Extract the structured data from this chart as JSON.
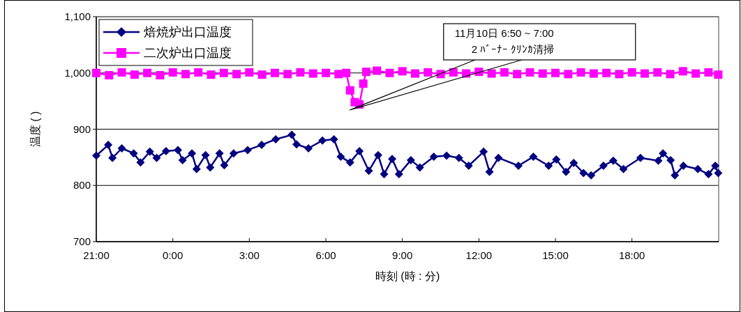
{
  "chart_data": {
    "type": "line",
    "xlabel": "時刻 (時 : 分)",
    "ylabel": "温度 (   )",
    "xlim": [
      "--11-09T21:00",
      "--11-10T21:24"
    ],
    "xticks": [
      {
        "value": "--11-09T21:00",
        "label": "21:00"
      },
      {
        "value": "--11-10T00:00",
        "label": "0:00"
      },
      {
        "value": "--11-10T03:00",
        "label": "3:00"
      },
      {
        "value": "--11-10T06:00",
        "label": "6:00"
      },
      {
        "value": "--11-10T09:00",
        "label": "9:00"
      },
      {
        "value": "--11-10T12:00",
        "label": "12:00"
      },
      {
        "value": "--11-10T15:00",
        "label": "15:00"
      },
      {
        "value": "--11-10T18:00",
        "label": "18:00"
      }
    ],
    "ylim": [
      700,
      1100
    ],
    "yticks": [
      700,
      800,
      900,
      {
        "value": 1000,
        "label": "1,000"
      },
      {
        "value": 1100,
        "label": "1,100"
      }
    ],
    "grid": "y",
    "legend": "top left",
    "series": [
      {
        "name": "焙焼炉出口温度",
        "color": "#000080",
        "marker": "diamond",
        "x": [
          "--11-09T21:00",
          "--11-09T21:28",
          "--11-09T21:38",
          "--11-09T22:00",
          "--11-09T22:28",
          "--11-09T22:44",
          "--11-09T23:06",
          "--11-09T23:22",
          "--11-09T23:44",
          "--11-10T00:12",
          "--11-10T00:23",
          "--11-10T00:45",
          "--11-10T00:56",
          "--11-10T01:17",
          "--11-10T01:28",
          "--11-10T01:50",
          "--11-10T02:01",
          "--11-10T02:23",
          "--11-10T02:56",
          "--11-10T03:29",
          "--11-10T04:02",
          "--11-10T04:40",
          "--11-10T04:51",
          "--11-10T05:19",
          "--11-10T05:52",
          "--11-10T06:19",
          "--11-10T06:35",
          "--11-10T06:57",
          "--11-10T07:19",
          "--11-10T07:41",
          "--11-10T08:03",
          "--11-10T08:17",
          "--11-10T08:36",
          "--11-10T08:52",
          "--11-10T09:20",
          "--11-10T09:41",
          "--11-10T10:14",
          "--11-10T10:44",
          "--11-10T11:13",
          "--11-10T11:36",
          "--11-10T12:11",
          "--11-10T12:25",
          "--11-10T12:46",
          "--11-10T13:33",
          "--11-10T14:08",
          "--11-10T14:44",
          "--11-10T15:02",
          "--11-10T15:25",
          "--11-10T15:43",
          "--11-10T16:06",
          "--11-10T16:24",
          "--11-10T16:53",
          "--11-10T17:16",
          "--11-10T17:40",
          "--11-10T18:20",
          "--11-10T19:02",
          "--11-10T19:13",
          "--11-10T19:31",
          "--11-10T19:41",
          "--11-10T20:01",
          "--11-10T20:35",
          "--11-10T21:00",
          "--11-10T21:16",
          "--11-10T21:23"
        ],
        "values": [
          853,
          872,
          849,
          866,
          857,
          841,
          860,
          849,
          861,
          863,
          845,
          857,
          829,
          854,
          832,
          857,
          836,
          857,
          863,
          872,
          882,
          890,
          873,
          866,
          880,
          882,
          851,
          841,
          861,
          826,
          854,
          820,
          847,
          820,
          845,
          832,
          851,
          853,
          849,
          835,
          860,
          824,
          849,
          835,
          851,
          835,
          846,
          824,
          840,
          822,
          818,
          835,
          844,
          829,
          849,
          844,
          857,
          845,
          818,
          835,
          829,
          820,
          835,
          822
        ]
      },
      {
        "name": "二次炉出口温度",
        "color": "#ff00ff",
        "marker": "square",
        "x": [
          "--11-09T21:00",
          "--11-09T21:30",
          "--11-09T22:00",
          "--11-09T22:30",
          "--11-09T23:00",
          "--11-09T23:30",
          "--11-10T00:00",
          "--11-10T00:30",
          "--11-10T01:00",
          "--11-10T01:30",
          "--11-10T02:00",
          "--11-10T02:30",
          "--11-10T03:00",
          "--11-10T03:30",
          "--11-10T04:00",
          "--11-10T04:30",
          "--11-10T05:00",
          "--11-10T05:30",
          "--11-10T06:00",
          "--11-10T06:30",
          "--11-10T06:48",
          "--11-10T06:57",
          "--11-10T07:08",
          "--11-10T07:19",
          "--11-10T07:28",
          "--11-10T07:35",
          "--11-10T08:00",
          "--11-10T08:30",
          "--11-10T09:00",
          "--11-10T09:30",
          "--11-10T10:00",
          "--11-10T10:30",
          "--11-10T11:00",
          "--11-10T11:30",
          "--11-10T12:00",
          "--11-10T12:30",
          "--11-10T13:00",
          "--11-10T13:30",
          "--11-10T14:00",
          "--11-10T14:30",
          "--11-10T15:00",
          "--11-10T15:30",
          "--11-10T16:00",
          "--11-10T16:30",
          "--11-10T17:00",
          "--11-10T17:30",
          "--11-10T18:00",
          "--11-10T18:30",
          "--11-10T19:00",
          "--11-10T19:30",
          "--11-10T20:00",
          "--11-10T20:30",
          "--11-10T21:00",
          "--11-10T21:23"
        ],
        "values": [
          1000,
          996,
          1001,
          997,
          1000,
          996,
          1001,
          998,
          1001,
          997,
          1000,
          998,
          1001,
          997,
          1000,
          998,
          1001,
          999,
          1000,
          998,
          1000,
          969,
          948,
          944,
          981,
          1002,
          1004,
          1000,
          1003,
          999,
          1001,
          998,
          1001,
          999,
          1002,
          999,
          1001,
          998,
          1001,
          999,
          1000,
          998,
          1001,
          999,
          1000,
          998,
          1001,
          999,
          1001,
          998,
          1003,
          999,
          1001,
          997
        ]
      }
    ],
    "annotations": [
      "11月10日 6:50 ~ 7:00\n2 ﾊﾞｰﾅｰ ｸﾘﾝｶ清掃"
    ]
  }
}
